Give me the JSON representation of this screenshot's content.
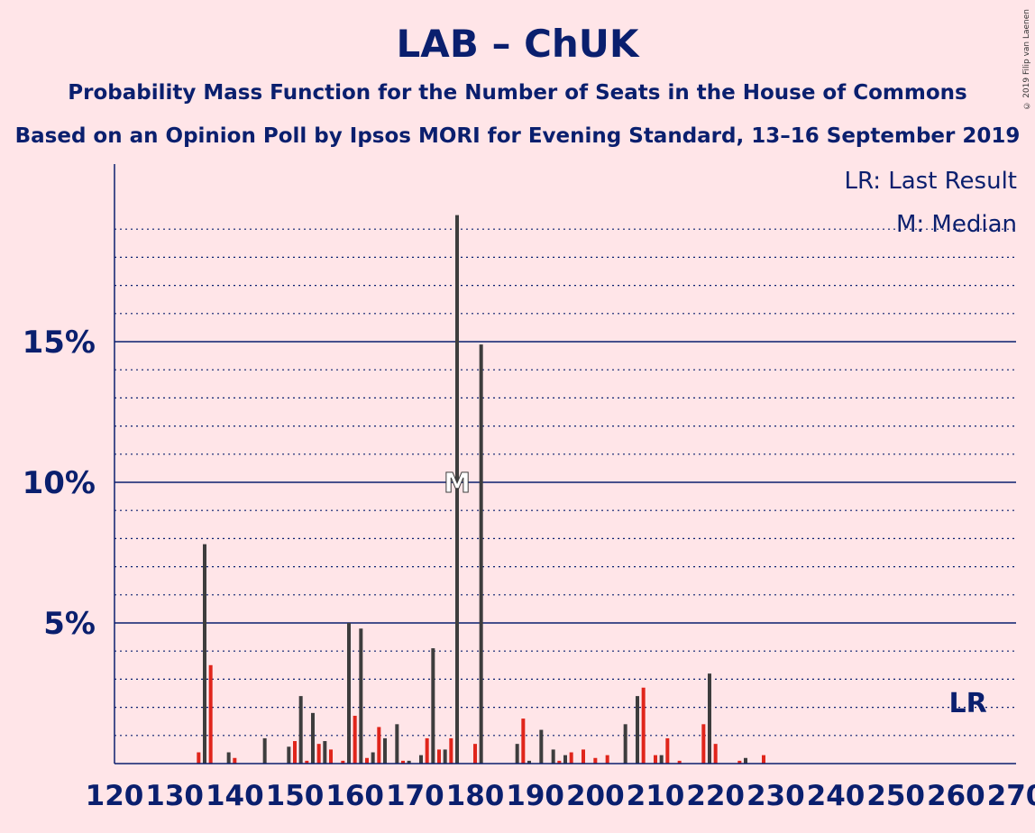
{
  "title": "LAB – ChUK",
  "subtitle1": "Probability Mass Function for the Number of Seats in the House of Commons",
  "subtitle2": "Based on an Opinion Poll by Ipsos MORI for Evening Standard, 13–16 September 2019",
  "copyright": "© 2019 Filip van Laenen",
  "legend": {
    "lr": "LR: Last Result",
    "median": "M: Median"
  },
  "markers": {
    "lr_label": "LR",
    "lr_seat": 262,
    "median_label": "M",
    "median_seat": 177
  },
  "colors": {
    "background": "#ffe5e8",
    "text": "#0a1f6e",
    "bar_dark": "#3d3d3d",
    "bar_red": "#e0251b",
    "gridline": "#0a1f6e"
  },
  "chart_data": {
    "type": "bar",
    "x_axis": {
      "min": 120,
      "max": 270,
      "ticks": [
        120,
        130,
        140,
        150,
        160,
        170,
        180,
        190,
        200,
        210,
        220,
        230,
        240,
        250,
        260,
        270
      ]
    },
    "y_axis": {
      "min": 0,
      "max": 21,
      "unit": "%",
      "ticks": [
        {
          "value": 5,
          "label": "5%"
        },
        {
          "value": 10,
          "label": "10%"
        },
        {
          "value": 15,
          "label": "15%"
        }
      ]
    },
    "seats": [
      {
        "seat": 134,
        "pct": 0.4
      },
      {
        "seat": 135,
        "pct": 7.8
      },
      {
        "seat": 136,
        "pct": 3.5
      },
      {
        "seat": 139,
        "pct": 0.4
      },
      {
        "seat": 140,
        "pct": 0.2
      },
      {
        "seat": 145,
        "pct": 0.9
      },
      {
        "seat": 149,
        "pct": 0.6
      },
      {
        "seat": 150,
        "pct": 0.8
      },
      {
        "seat": 151,
        "pct": 2.4
      },
      {
        "seat": 152,
        "pct": 0.1
      },
      {
        "seat": 153,
        "pct": 1.8
      },
      {
        "seat": 154,
        "pct": 0.7
      },
      {
        "seat": 155,
        "pct": 0.8
      },
      {
        "seat": 156,
        "pct": 0.5
      },
      {
        "seat": 158,
        "pct": 0.1
      },
      {
        "seat": 159,
        "pct": 5.0
      },
      {
        "seat": 160,
        "pct": 1.7
      },
      {
        "seat": 161,
        "pct": 4.8
      },
      {
        "seat": 162,
        "pct": 0.2
      },
      {
        "seat": 163,
        "pct": 0.4
      },
      {
        "seat": 164,
        "pct": 1.3
      },
      {
        "seat": 165,
        "pct": 0.9
      },
      {
        "seat": 167,
        "pct": 1.4
      },
      {
        "seat": 168,
        "pct": 0.1
      },
      {
        "seat": 169,
        "pct": 0.1
      },
      {
        "seat": 171,
        "pct": 0.3
      },
      {
        "seat": 172,
        "pct": 0.9
      },
      {
        "seat": 173,
        "pct": 4.1
      },
      {
        "seat": 174,
        "pct": 0.5
      },
      {
        "seat": 175,
        "pct": 0.5
      },
      {
        "seat": 176,
        "pct": 0.9
      },
      {
        "seat": 177,
        "pct": 19.5
      },
      {
        "seat": 180,
        "pct": 0.7
      },
      {
        "seat": 181,
        "pct": 14.9
      },
      {
        "seat": 187,
        "pct": 0.7
      },
      {
        "seat": 188,
        "pct": 1.6
      },
      {
        "seat": 189,
        "pct": 0.1
      },
      {
        "seat": 191,
        "pct": 1.2
      },
      {
        "seat": 193,
        "pct": 0.5
      },
      {
        "seat": 194,
        "pct": 0.1
      },
      {
        "seat": 195,
        "pct": 0.3
      },
      {
        "seat": 196,
        "pct": 0.4
      },
      {
        "seat": 198,
        "pct": 0.5
      },
      {
        "seat": 200,
        "pct": 0.2
      },
      {
        "seat": 202,
        "pct": 0.3
      },
      {
        "seat": 205,
        "pct": 1.4
      },
      {
        "seat": 207,
        "pct": 2.4
      },
      {
        "seat": 208,
        "pct": 2.7
      },
      {
        "seat": 210,
        "pct": 0.3
      },
      {
        "seat": 211,
        "pct": 0.3
      },
      {
        "seat": 212,
        "pct": 0.9
      },
      {
        "seat": 214,
        "pct": 0.1
      },
      {
        "seat": 218,
        "pct": 1.4
      },
      {
        "seat": 219,
        "pct": 3.2
      },
      {
        "seat": 220,
        "pct": 0.7
      },
      {
        "seat": 224,
        "pct": 0.1
      },
      {
        "seat": 225,
        "pct": 0.2
      },
      {
        "seat": 228,
        "pct": 0.3
      }
    ]
  }
}
